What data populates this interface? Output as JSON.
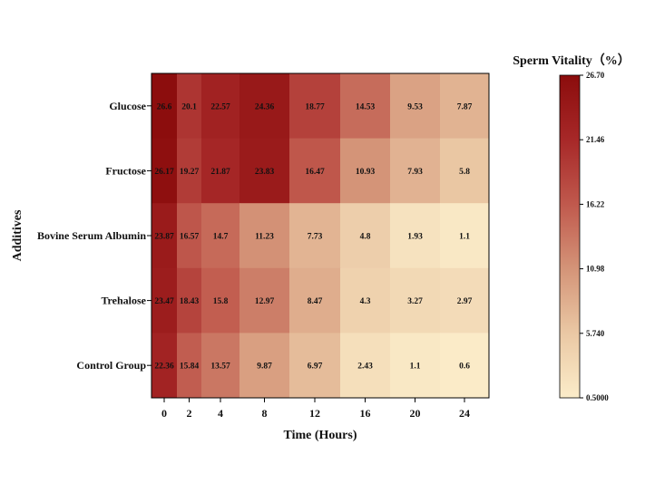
{
  "chart_data": {
    "type": "heatmap",
    "title": "",
    "xlabel": "Time (Hours)",
    "ylabel": "Additives",
    "x": [
      0,
      2,
      4,
      8,
      12,
      16,
      20,
      24
    ],
    "categories": [
      "Glucose",
      "Fructose",
      "Bovine Serum Albumin",
      "Trehalose",
      "Control Group"
    ],
    "values": [
      [
        "26.6",
        "20.1",
        "22.57",
        "24.36",
        "18.77",
        "14.53",
        "9.53",
        "7.87"
      ],
      [
        "26.17",
        "19.27",
        "21.87",
        "23.83",
        "16.47",
        "10.93",
        "7.93",
        "5.8"
      ],
      [
        "23.87",
        "16.57",
        "14.7",
        "11.23",
        "7.73",
        "4.8",
        "1.93",
        "1.1"
      ],
      [
        "23.47",
        "18.43",
        "15.8",
        "12.97",
        "8.47",
        "4.3",
        "3.27",
        "2.97"
      ],
      [
        "22.36",
        "15.84",
        "13.57",
        "9.87",
        "6.97",
        "2.43",
        "1.1",
        "0.6"
      ]
    ],
    "colorbar": {
      "title": "Sperm Vitality（%）",
      "min": 0.5,
      "max": 26.7,
      "ticks": [
        "26.70",
        "21.46",
        "16.22",
        "10.98",
        "5.740",
        "0.5000"
      ],
      "colors": [
        "#fbecc9",
        "#eac8a4",
        "#d49478",
        "#c0594d",
        "#a72828",
        "#8b0c0c"
      ]
    }
  }
}
